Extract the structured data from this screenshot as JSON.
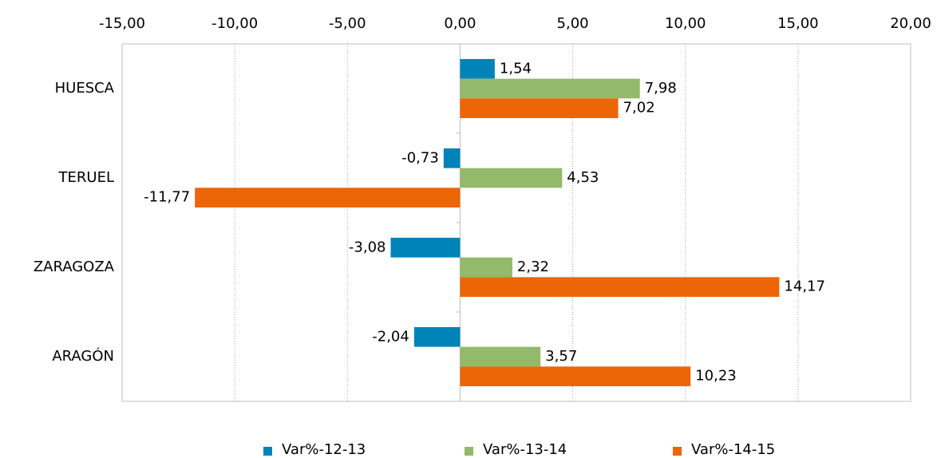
{
  "chart_data": {
    "type": "hbar",
    "categories": [
      "HUESCA",
      "TERUEL",
      "ZARAGOZA",
      "ARAGÓN"
    ],
    "series": [
      {
        "name": "Var%-12-13",
        "color": "#0083b8",
        "values": [
          1.54,
          -0.73,
          -3.08,
          -2.04
        ],
        "value_labels": [
          "1,54",
          "-0,73",
          "-3,08",
          "-2,04"
        ]
      },
      {
        "name": "Var%-13-14",
        "color": "#93b96b",
        "values": [
          7.98,
          4.53,
          2.32,
          3.57
        ],
        "value_labels": [
          "7,98",
          "4,53",
          "2,32",
          "3,57"
        ]
      },
      {
        "name": "Var%-14-15",
        "color": "#ec6608",
        "values": [
          7.02,
          -11.77,
          14.17,
          10.23
        ],
        "value_labels": [
          "7,02",
          "-11,77",
          "14,17",
          "10,23"
        ]
      }
    ],
    "xlim": [
      -15,
      20
    ],
    "xticks": [
      {
        "value": -15,
        "label": "-15,00"
      },
      {
        "value": -10,
        "label": "-10,00"
      },
      {
        "value": -5,
        "label": "-5,00"
      },
      {
        "value": 0,
        "label": "0,00"
      },
      {
        "value": 5,
        "label": "5,00"
      },
      {
        "value": 10,
        "label": "10,00"
      },
      {
        "value": 15,
        "label": "15,00"
      },
      {
        "value": 20,
        "label": "20,00"
      }
    ],
    "grid": true,
    "legend": "bottom"
  }
}
